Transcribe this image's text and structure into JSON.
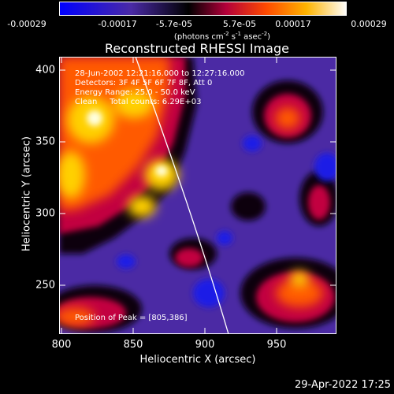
{
  "colorbar": {
    "ticks": [
      "-0.00029",
      "-0.00017",
      "-5.7e-05",
      "5.7e-05",
      "0.00017",
      "0.00029"
    ],
    "unit_text": "(photons cm",
    "unit_exp1": "-2",
    "unit_mid": " s",
    "unit_exp2": "-1",
    "unit_mid2": " asec",
    "unit_exp3": "-2",
    "unit_end": ")",
    "colors": [
      "#0000ff",
      "#4a2aa6",
      "#000000",
      "#b3003a",
      "#ff6a00",
      "#ffd400",
      "#ffffff"
    ]
  },
  "plot": {
    "title": "Reconstructed RHESSI Image",
    "info": [
      "28-Jun-2002 12:21:16.000 to 12:27:16.000",
      "Detectors: 3F 4F 5F 6F 7F 8F, Att 0",
      "Energy Range: 25.0 - 50.0 keV",
      "Clean     Total counts: 6.29E+03"
    ],
    "peak_text": "Position of Peak = [805,386]",
    "x_ticks": [
      "800",
      "850",
      "900",
      "950"
    ],
    "y_ticks": [
      "400",
      "350",
      "300",
      "250"
    ],
    "xlabel": "Heliocentric X (arcsec)",
    "ylabel": "Heliocentric Y (arcsec)"
  },
  "timestamp": "29-Apr-2022 17:25"
}
